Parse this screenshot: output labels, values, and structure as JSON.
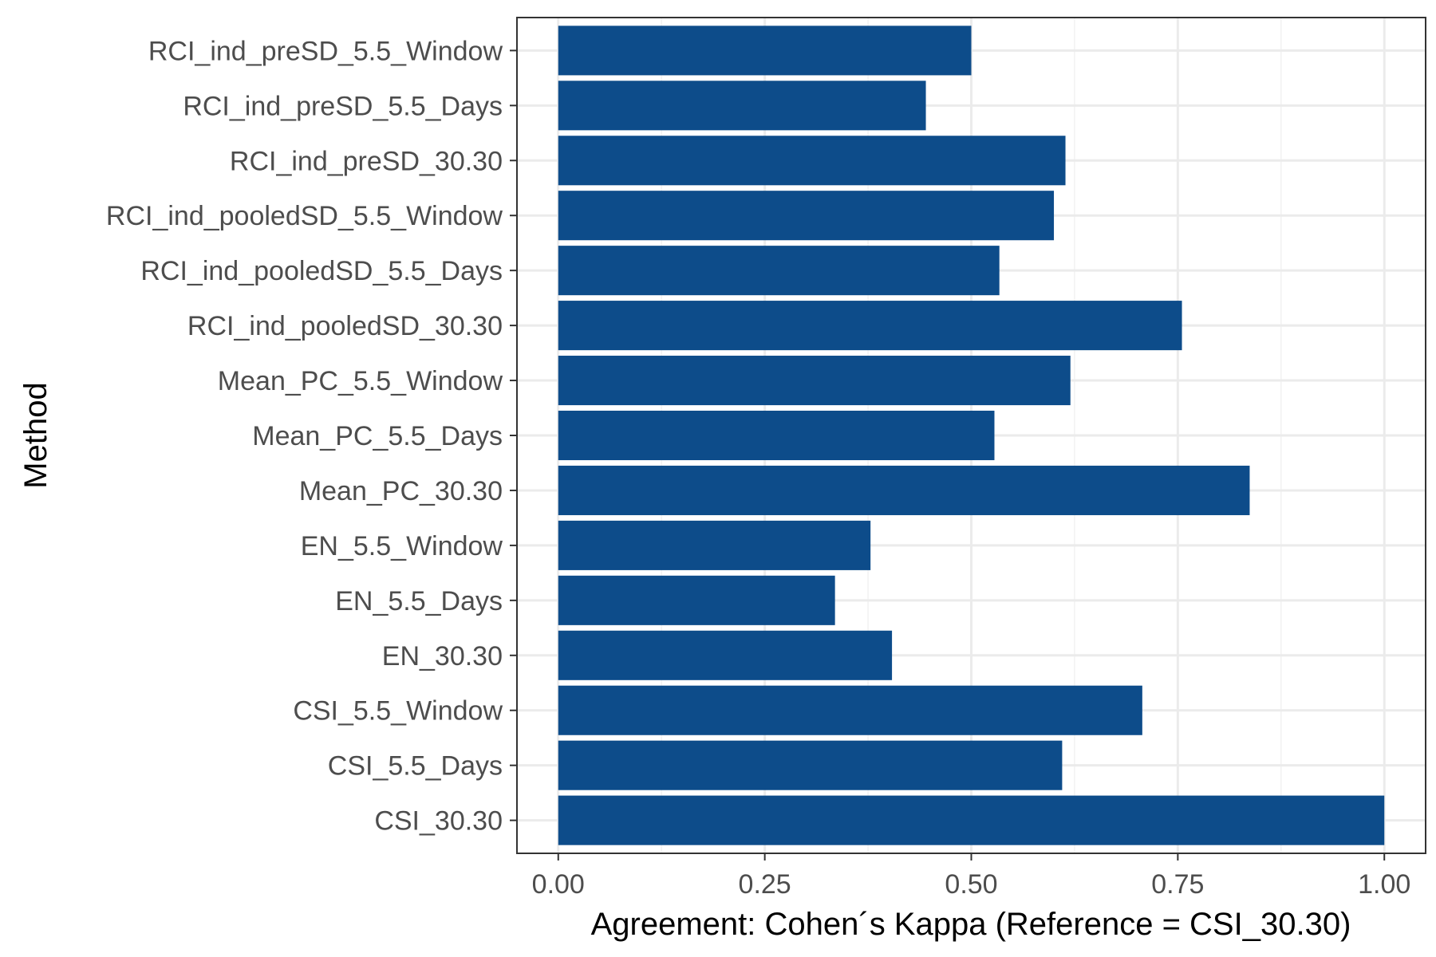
{
  "chart_data": {
    "type": "bar",
    "orientation": "horizontal",
    "title": "",
    "xlabel": "Agreement: Cohen´s Kappa (Reference = CSI_30.30)",
    "ylabel": "Method",
    "xlim": [
      -0.05,
      1.05
    ],
    "x_ticks": [
      0.0,
      0.25,
      0.5,
      0.75,
      1.0
    ],
    "x_tick_labels": [
      "0.00",
      "0.25",
      "0.50",
      "0.75",
      "1.00"
    ],
    "grid": true,
    "legend": "none",
    "bar_color": "#0d4c8a",
    "categories": [
      "RCI_ind_preSD_5.5_Window",
      "RCI_ind_preSD_5.5_Days",
      "RCI_ind_preSD_30.30",
      "RCI_ind_pooledSD_5.5_Window",
      "RCI_ind_pooledSD_5.5_Days",
      "RCI_ind_pooledSD_30.30",
      "Mean_PC_5.5_Window",
      "Mean_PC_5.5_Days",
      "Mean_PC_30.30",
      "EN_5.5_Window",
      "EN_5.5_Days",
      "EN_30.30",
      "CSI_5.5_Window",
      "CSI_5.5_Days",
      "CSI_30.30"
    ],
    "values": [
      0.5,
      0.445,
      0.614,
      0.6,
      0.534,
      0.755,
      0.62,
      0.528,
      0.837,
      0.378,
      0.335,
      0.404,
      0.707,
      0.61,
      1.0
    ]
  }
}
